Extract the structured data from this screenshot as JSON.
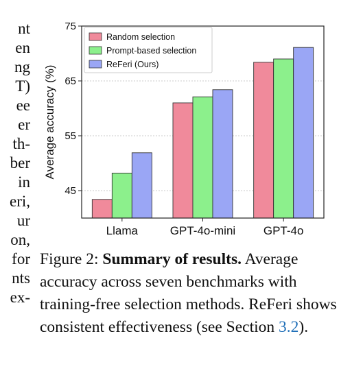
{
  "left_column_fragments": [
    "nt",
    "en",
    "ng",
    "T)",
    "ee",
    "er",
    "th-",
    "ber",
    "in",
    "eri,",
    "ur",
    "on,",
    "for",
    "nts",
    "ex-"
  ],
  "chart_data": {
    "type": "bar",
    "categories": [
      "Llama",
      "GPT-4o-mini",
      "GPT-4o"
    ],
    "series": [
      {
        "name": "Random selection",
        "values": [
          43.4,
          61.0,
          68.4
        ],
        "color": "#f08a9b"
      },
      {
        "name": "Prompt-based selection",
        "values": [
          48.2,
          62.1,
          69.0
        ],
        "color": "#8cf08c"
      },
      {
        "name": "ReFeri (Ours)",
        "values": [
          51.9,
          63.4,
          71.1
        ],
        "color": "#9aa6f5"
      }
    ],
    "ylabel": "Average accuracy (%)",
    "xlabel": "",
    "ylim": [
      40,
      75
    ],
    "yticks": [
      45,
      55,
      65,
      75
    ],
    "grid": "horizontal-dashed",
    "legend": "top-left"
  },
  "caption": {
    "figure_label": "Figure 2:",
    "bold_title": "Summary of results.",
    "text_before_ref": "Average accuracy across seven benchmarks with training-free selection methods. ReFeri shows consistent effectiveness (see Section ",
    "ref": "3.2",
    "text_after_ref": ")."
  }
}
